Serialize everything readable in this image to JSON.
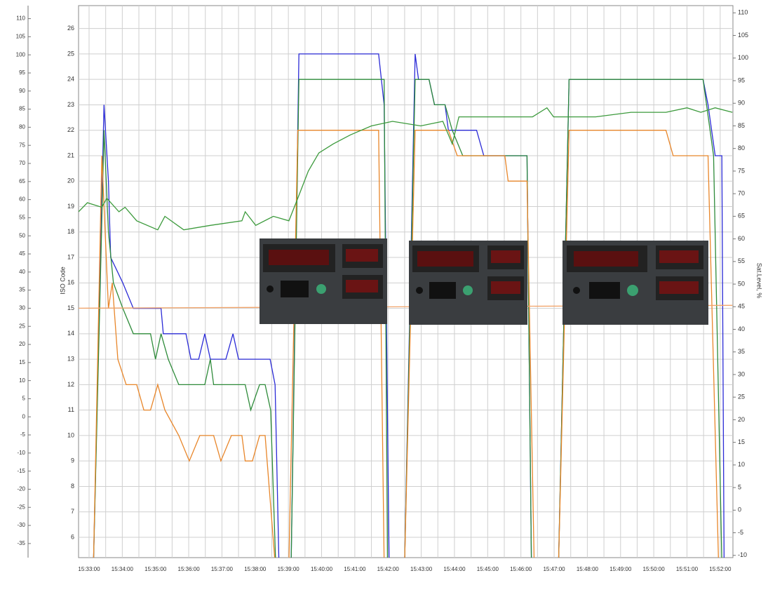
{
  "chart_data": {
    "type": "line",
    "ylabel": "ISO Code",
    "y2label": "Sat.Level, %",
    "grid": true,
    "xlim": [
      "15:32:41",
      "15:52:23"
    ],
    "xticks": [
      "15:33:00",
      "15:34:00",
      "15:35:00",
      "15:36:00",
      "15:37:00",
      "15:38:00",
      "15:39:00",
      "15:40:00",
      "15:41:00",
      "15:42:00",
      "15:43:00",
      "15:44:00",
      "15:45:00",
      "15:46:00",
      "15:47:00",
      "15:48:00",
      "15:49:00",
      "15:50:00",
      "15:51:00",
      "15:52:00"
    ],
    "ylim": [
      5.2,
      26.9
    ],
    "yticks": [
      6,
      7,
      8,
      9,
      10,
      11,
      12,
      13,
      14,
      15,
      16,
      17,
      18,
      19,
      20,
      21,
      22,
      23,
      24,
      25,
      26
    ],
    "y2lim": [
      -10.5,
      111.6
    ],
    "y2ticks": [
      -10,
      -5,
      0,
      5,
      10,
      15,
      20,
      25,
      30,
      35,
      40,
      45,
      50,
      55,
      60,
      65,
      70,
      75,
      80,
      85,
      90,
      95,
      100,
      105,
      110
    ],
    "y3lim": [
      -38.9,
      113.6
    ],
    "y3ticks": [
      -35,
      -30,
      -25,
      -20,
      -15,
      -10,
      -5,
      0,
      5,
      10,
      15,
      20,
      25,
      30,
      35,
      40,
      45,
      50,
      55,
      60,
      65,
      70,
      75,
      80,
      85,
      90,
      95,
      100,
      105,
      110
    ],
    "series": [
      {
        "color": "#2b2bd6",
        "axis": "y",
        "x": [
          "15:33:08",
          "15:33:27",
          "15:33:35",
          "15:33:39",
          "15:34:01",
          "15:34:20",
          "15:35:10",
          "15:35:14",
          "15:35:55",
          "15:36:04",
          "15:36:18",
          "15:36:29",
          "15:36:39",
          "15:37:07",
          "15:37:20",
          "15:37:30",
          "15:38:27",
          "15:38:36",
          "15:38:43",
          "15:39:05",
          "15:39:19",
          "15:41:43",
          "15:41:53",
          "15:42:02",
          "15:42:30",
          "15:42:49",
          "15:42:55",
          "15:43:14",
          "15:43:24",
          "15:43:43",
          "15:43:49",
          "15:44:40",
          "15:44:53",
          "15:46:11",
          "15:46:19",
          "15:47:08",
          "15:47:27",
          "15:51:29",
          "15:51:38",
          "15:51:51",
          "15:52:03",
          "15:52:07"
        ],
        "values": [
          5,
          23,
          20,
          17,
          16,
          15,
          15,
          14,
          14,
          13,
          13,
          14,
          13,
          13,
          14,
          13,
          13,
          12,
          5,
          5,
          25,
          25,
          23,
          5,
          5,
          25,
          24,
          24,
          23,
          23,
          22,
          22,
          21,
          21,
          5,
          5,
          24,
          24,
          23,
          21,
          21,
          5
        ]
      },
      {
        "color": "#2e8b3a",
        "axis": "y",
        "x": [
          "15:33:08",
          "15:33:27",
          "15:33:35",
          "15:33:44",
          "15:34:01",
          "15:34:20",
          "15:34:51",
          "15:35:00",
          "15:35:10",
          "15:35:23",
          "15:35:42",
          "15:36:29",
          "15:36:39",
          "15:36:45",
          "15:37:42",
          "15:37:52",
          "15:38:08",
          "15:38:18",
          "15:38:28",
          "15:38:37",
          "15:39:05",
          "15:39:19",
          "15:41:53",
          "15:41:59",
          "15:42:30",
          "15:42:49",
          "15:43:14",
          "15:43:24",
          "15:43:43",
          "15:43:56",
          "15:44:15",
          "15:46:11",
          "15:46:19",
          "15:47:08",
          "15:47:27",
          "15:51:29",
          "15:51:48",
          "15:52:03"
        ],
        "values": [
          5,
          22,
          18,
          16,
          15,
          14,
          14,
          13,
          14,
          13,
          12,
          12,
          13,
          12,
          12,
          11,
          12,
          12,
          11,
          5,
          5,
          24,
          24,
          5,
          5,
          24,
          24,
          23,
          23,
          22,
          21,
          21,
          5,
          5,
          24,
          24,
          21,
          5
        ]
      },
      {
        "color": "#e8862a",
        "axis": "y",
        "x": [
          "15:33:08",
          "15:33:23",
          "15:33:35",
          "15:33:42",
          "15:33:52",
          "15:34:07",
          "15:34:26",
          "15:34:39",
          "15:34:51",
          "15:35:04",
          "15:35:17",
          "15:35:42",
          "15:36:01",
          "15:36:20",
          "15:36:45",
          "15:36:58",
          "15:37:17",
          "15:37:36",
          "15:37:42",
          "15:37:55",
          "15:38:08",
          "15:38:18",
          "15:38:36",
          "15:39:01",
          "15:39:17",
          "15:41:43",
          "15:41:53",
          "15:42:30",
          "15:42:49",
          "15:43:49",
          "15:44:05",
          "15:45:31",
          "15:45:37",
          "15:46:11",
          "15:46:24",
          "15:47:08",
          "15:47:27",
          "15:50:22",
          "15:50:35",
          "15:51:38",
          "15:51:57"
        ],
        "values": [
          5,
          21,
          15,
          16,
          13,
          12,
          12,
          11,
          11,
          12,
          11,
          10,
          9,
          10,
          10,
          9,
          10,
          10,
          9,
          9,
          10,
          10,
          5,
          5,
          22,
          22,
          5,
          5,
          22,
          22,
          21,
          21,
          20,
          20,
          5,
          5,
          22,
          22,
          21,
          21,
          5
        ]
      },
      {
        "color": "#3c9a3c",
        "axis": "y2",
        "x": [
          "15:32:41",
          "15:32:57",
          "15:33:23",
          "15:33:32",
          "15:33:54",
          "15:34:05",
          "15:34:26",
          "15:35:04",
          "15:35:17",
          "15:35:51",
          "15:36:39",
          "15:37:36",
          "15:37:42",
          "15:38:01",
          "15:38:33",
          "15:39:01",
          "15:39:17",
          "15:39:36",
          "15:39:55",
          "15:40:21",
          "15:40:52",
          "15:41:30",
          "15:42:08",
          "15:42:59",
          "15:43:39",
          "15:43:56",
          "15:44:08",
          "15:45:05",
          "15:46:21",
          "15:46:47",
          "15:46:59",
          "15:48:15",
          "15:49:19",
          "15:50:22",
          "15:51:00",
          "15:51:25",
          "15:51:51",
          "15:52:22"
        ],
        "values": [
          66,
          68,
          67,
          69,
          66,
          67,
          64,
          62,
          65,
          62,
          63,
          64,
          66,
          63,
          65,
          64,
          69,
          75,
          79,
          81,
          83,
          85,
          86,
          85,
          86,
          81,
          87,
          87,
          87,
          89,
          87,
          87,
          88,
          88,
          89,
          88,
          89,
          88
        ]
      },
      {
        "color": "#f2a46a",
        "axis": "y3",
        "x": [
          "15:32:41",
          "15:52:22"
        ],
        "values": [
          30,
          30.8
        ]
      }
    ]
  }
}
